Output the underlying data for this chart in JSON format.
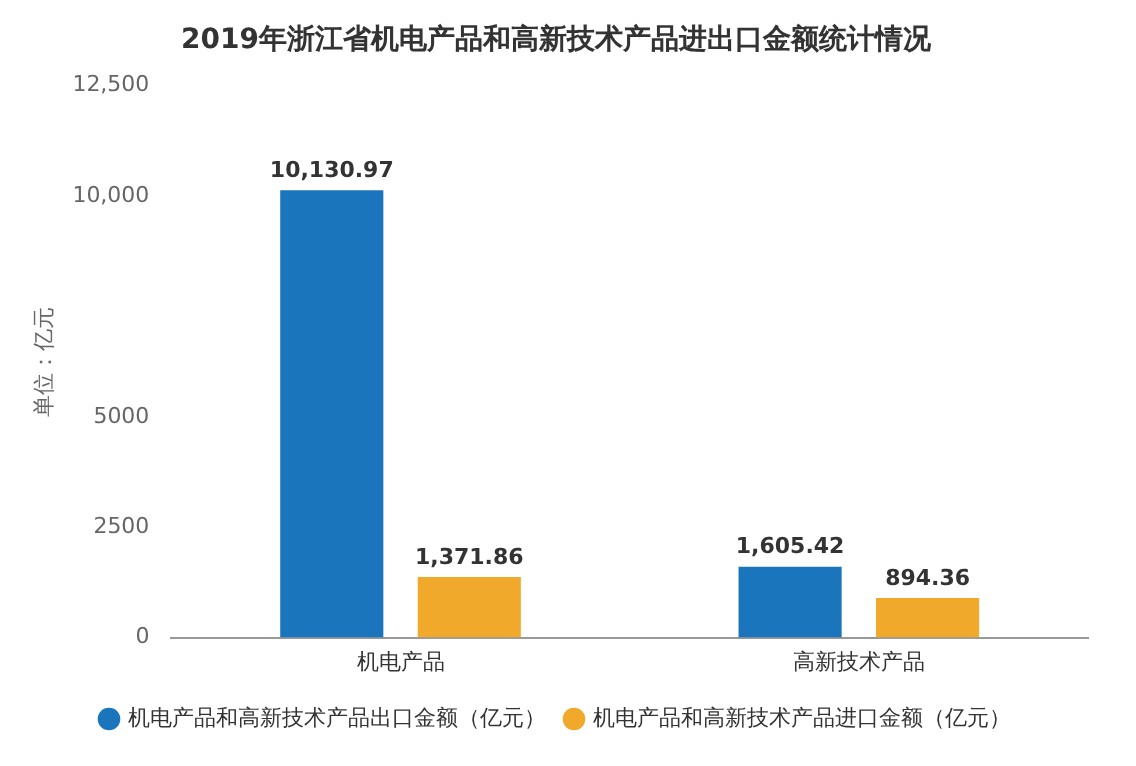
{
  "chart_data": {
    "type": "bar",
    "title": "2019年浙江省机电产品和高新技术产品进出口金额统计情况",
    "ylabel": "单位：亿元",
    "categories": [
      "机电产品",
      "高新技术产品"
    ],
    "series": [
      {
        "name": "机电产品和高新技术产品出口金额（亿元）",
        "color": "#1a75bc",
        "values": [
          10130.97,
          1605.42
        ],
        "value_labels": [
          "10,130.97",
          "1,605.42"
        ]
      },
      {
        "name": "机电产品和高新技术产品进口金额（亿元）",
        "color": "#f0a92b",
        "values": [
          1371.86,
          894.36
        ],
        "value_labels": [
          "1,371.86",
          "894.36"
        ]
      }
    ],
    "ylim": [
      0,
      12500
    ],
    "yticks": [
      0,
      2500,
      5000,
      {
        "value": 10000,
        "label": "10,000"
      },
      {
        "value": 12500,
        "label": "12,500"
      }
    ],
    "grid": false,
    "legend": "bottom"
  }
}
